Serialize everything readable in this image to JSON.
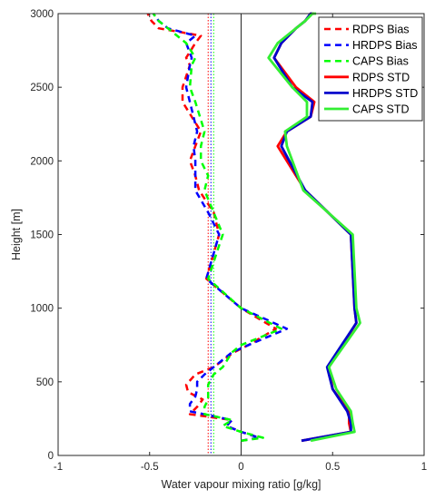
{
  "chart_data": {
    "type": "line",
    "xlabel": "Water vapour mixing ratio [g/kg]",
    "ylabel": "Height [m]",
    "xlim": [
      -1,
      1
    ],
    "ylim": [
      0,
      3000
    ],
    "xticks": [
      -1,
      -0.5,
      0,
      0.5,
      1
    ],
    "yticks": [
      0,
      500,
      1000,
      1500,
      2000,
      2500,
      3000
    ],
    "grid": false,
    "legend_position": "top-right",
    "vertical_reference_line": 0,
    "mean_bias_lines": [
      {
        "series": "RDPS Bias",
        "x": -0.18
      },
      {
        "series": "HRDPS Bias",
        "x": -0.165
      },
      {
        "series": "CAPS Bias",
        "x": -0.15
      }
    ],
    "series": [
      {
        "name": "RDPS Bias",
        "color": "#ff0000",
        "style": "dashed",
        "x": [
          0.0,
          0.1,
          0.0,
          -0.08,
          -0.05,
          -0.28,
          -0.24,
          -0.21,
          -0.29,
          -0.3,
          -0.25,
          -0.15,
          -0.04,
          0.04,
          0.19,
          0.0,
          -0.19,
          -0.12,
          -0.15,
          -0.23,
          -0.25,
          -0.28,
          -0.25,
          -0.22,
          -0.32,
          -0.32,
          -0.28,
          -0.3,
          -0.25,
          -0.22,
          -0.45,
          -0.49,
          -0.51
        ],
        "y": [
          100,
          120,
          160,
          200,
          240,
          280,
          330,
          380,
          430,
          480,
          550,
          600,
          700,
          750,
          860,
          1000,
          1200,
          1500,
          1650,
          1800,
          1900,
          2000,
          2100,
          2200,
          2400,
          2500,
          2650,
          2700,
          2800,
          2850,
          2900,
          2950,
          3000
        ]
      },
      {
        "name": "HRDPS Bias",
        "color": "#0000ff",
        "style": "dashed",
        "x": [
          0.0,
          0.1,
          0.0,
          -0.08,
          -0.05,
          -0.28,
          -0.28,
          -0.25,
          -0.24,
          -0.24,
          -0.2,
          -0.15,
          -0.05,
          0.04,
          0.25,
          0.0,
          -0.19,
          -0.12,
          -0.18,
          -0.25,
          -0.25,
          -0.25,
          -0.26,
          -0.24,
          -0.28,
          -0.3,
          -0.28,
          -0.27,
          -0.3,
          -0.25,
          -0.4,
          -0.45,
          -0.48
        ],
        "y": [
          100,
          120,
          160,
          200,
          240,
          300,
          350,
          400,
          450,
          500,
          550,
          600,
          700,
          750,
          860,
          1000,
          1200,
          1500,
          1650,
          1800,
          1900,
          2000,
          2100,
          2200,
          2400,
          2500,
          2650,
          2700,
          2800,
          2850,
          2900,
          2950,
          3000
        ]
      },
      {
        "name": "CAPS Bias",
        "color": "#00ff00",
        "style": "dashed",
        "x": [
          0.0,
          0.12,
          0.0,
          -0.1,
          -0.05,
          -0.2,
          -0.2,
          -0.18,
          -0.18,
          -0.18,
          -0.15,
          -0.1,
          -0.05,
          0.0,
          0.22,
          0.0,
          -0.18,
          -0.1,
          -0.15,
          -0.2,
          -0.18,
          -0.22,
          -0.22,
          -0.2,
          -0.25,
          -0.28,
          -0.27,
          -0.25,
          -0.3,
          -0.35,
          -0.4,
          -0.45,
          -0.48
        ],
        "y": [
          100,
          120,
          160,
          200,
          240,
          280,
          330,
          380,
          430,
          480,
          550,
          600,
          700,
          750,
          860,
          1000,
          1200,
          1500,
          1650,
          1800,
          1900,
          2000,
          2100,
          2200,
          2400,
          2500,
          2650,
          2700,
          2800,
          2850,
          2900,
          2950,
          3000
        ]
      },
      {
        "name": "RDPS STD",
        "color": "#ff0000",
        "style": "solid",
        "x": [
          0.33,
          0.6,
          0.59,
          0.59,
          0.5,
          0.48,
          0.63,
          0.62,
          0.6,
          0.35,
          0.2,
          0.25,
          0.38,
          0.4,
          0.3,
          0.18,
          0.22,
          0.3,
          0.35,
          0.38,
          0.4,
          0.4
        ],
        "y": [
          100,
          160,
          220,
          300,
          450,
          600,
          900,
          1000,
          1500,
          1800,
          2100,
          2200,
          2300,
          2400,
          2500,
          2700,
          2800,
          2900,
          2950,
          3000,
          3000,
          3000
        ]
      },
      {
        "name": "HRDPS STD",
        "color": "#0000cc",
        "style": "solid",
        "x": [
          0.33,
          0.6,
          0.6,
          0.58,
          0.5,
          0.47,
          0.63,
          0.62,
          0.6,
          0.35,
          0.22,
          0.25,
          0.38,
          0.39,
          0.28,
          0.18,
          0.22,
          0.3,
          0.35,
          0.38,
          0.39,
          0.39
        ],
        "y": [
          100,
          160,
          220,
          300,
          450,
          600,
          900,
          1000,
          1500,
          1800,
          2100,
          2200,
          2300,
          2400,
          2500,
          2700,
          2800,
          2900,
          2950,
          3000,
          3000,
          3000
        ]
      },
      {
        "name": "CAPS STD",
        "color": "#33ee33",
        "style": "solid",
        "x": [
          0.38,
          0.62,
          0.61,
          0.6,
          0.52,
          0.48,
          0.65,
          0.63,
          0.61,
          0.34,
          0.25,
          0.24,
          0.36,
          0.36,
          0.28,
          0.15,
          0.2,
          0.3,
          0.35,
          0.39,
          0.4,
          0.41
        ],
        "y": [
          100,
          160,
          220,
          300,
          450,
          600,
          900,
          1000,
          1500,
          1800,
          2100,
          2200,
          2300,
          2400,
          2500,
          2700,
          2800,
          2900,
          2950,
          3000,
          3000,
          3000
        ]
      }
    ]
  }
}
